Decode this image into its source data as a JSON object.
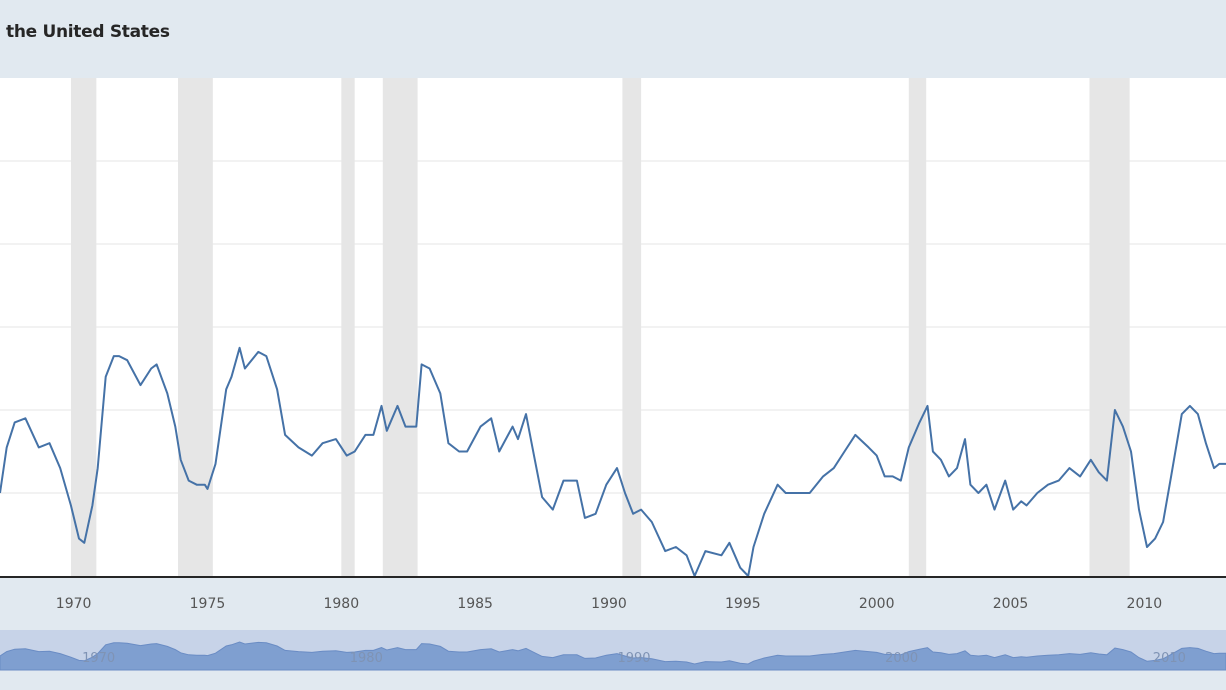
{
  "chart_data": {
    "type": "line",
    "title": "the United States",
    "xlabel": "",
    "ylabel": "",
    "xlim": [
      1967.25,
      2013.05
    ],
    "ylim": [
      0,
      6
    ],
    "grid": true,
    "recession_shading": true,
    "x_ticks": [
      "1970",
      "1975",
      "1980",
      "1985",
      "1990",
      "1995",
      "2000",
      "2005",
      "2010"
    ],
    "recessions": [
      [
        1969.9,
        1970.85
      ],
      [
        1973.9,
        1975.2
      ],
      [
        1980.0,
        1980.5
      ],
      [
        1981.55,
        1982.85
      ],
      [
        1990.5,
        1991.2
      ],
      [
        2001.2,
        2001.85
      ],
      [
        2007.95,
        2009.45
      ]
    ],
    "series": [
      {
        "name": "",
        "x": [
          1967.25,
          1967.5,
          1967.8,
          1968.2,
          1968.7,
          1969.1,
          1969.5,
          1969.9,
          1970.2,
          1970.4,
          1970.7,
          1970.9,
          1971.2,
          1971.5,
          1971.7,
          1972.0,
          1972.5,
          1972.9,
          1973.1,
          1973.5,
          1973.8,
          1974.0,
          1974.3,
          1974.6,
          1974.9,
          1975.0,
          1975.3,
          1975.7,
          1975.9,
          1976.2,
          1976.4,
          1976.9,
          1977.2,
          1977.6,
          1977.9,
          1978.4,
          1978.9,
          1979.3,
          1979.8,
          1980.2,
          1980.5,
          1980.9,
          1981.2,
          1981.5,
          1981.7,
          1982.1,
          1982.4,
          1982.8,
          1983.0,
          1983.3,
          1983.7,
          1984.0,
          1984.4,
          1984.7,
          1985.2,
          1985.6,
          1985.9,
          1986.4,
          1986.6,
          1986.9,
          1987.2,
          1987.5,
          1987.9,
          1988.3,
          1988.8,
          1989.1,
          1989.5,
          1989.9,
          1990.3,
          1990.6,
          1990.9,
          1991.2,
          1991.6,
          1992.1,
          1992.5,
          1992.9,
          1993.2,
          1993.6,
          1994.2,
          1994.5,
          1994.9,
          1995.2,
          1995.4,
          1995.8,
          1996.3,
          1996.6,
          1997.0,
          1997.5,
          1998.0,
          1998.4,
          1998.8,
          1999.2,
          1999.7,
          2000.0,
          2000.3,
          2000.6,
          2000.9,
          2001.2,
          2001.6,
          2001.9,
          2002.1,
          2002.4,
          2002.7,
          2003.0,
          2003.3,
          2003.5,
          2003.8,
          2004.1,
          2004.4,
          2004.8,
          2005.1,
          2005.4,
          2005.6,
          2006.0,
          2006.4,
          2006.8,
          2007.2,
          2007.6,
          2008.0,
          2008.3,
          2008.6,
          2008.9,
          2009.2,
          2009.5,
          2009.8,
          2010.1,
          2010.4,
          2010.7,
          2011.0,
          2011.4,
          2011.7,
          2012.0,
          2012.3,
          2012.6,
          2012.8,
          2013.05
        ],
        "values": [
          1.0,
          1.55,
          1.85,
          1.9,
          1.55,
          1.6,
          1.3,
          0.85,
          0.45,
          0.4,
          0.85,
          1.3,
          2.4,
          2.65,
          2.65,
          2.6,
          2.3,
          2.5,
          2.55,
          2.2,
          1.8,
          1.4,
          1.15,
          1.1,
          1.1,
          1.05,
          1.35,
          2.25,
          2.4,
          2.75,
          2.5,
          2.7,
          2.65,
          2.25,
          1.7,
          1.55,
          1.45,
          1.6,
          1.65,
          1.45,
          1.5,
          1.7,
          1.7,
          2.05,
          1.75,
          2.05,
          1.8,
          1.8,
          2.55,
          2.5,
          2.2,
          1.6,
          1.5,
          1.5,
          1.8,
          1.9,
          1.5,
          1.8,
          1.65,
          1.95,
          1.45,
          0.95,
          0.8,
          1.15,
          1.15,
          0.7,
          0.75,
          1.1,
          1.3,
          1.0,
          0.75,
          0.8,
          0.65,
          0.3,
          0.35,
          0.25,
          0.0,
          0.3,
          0.25,
          0.4,
          0.1,
          0.0,
          0.35,
          0.75,
          1.1,
          1.0,
          1.0,
          1.0,
          1.2,
          1.3,
          1.5,
          1.7,
          1.55,
          1.45,
          1.2,
          1.2,
          1.15,
          1.55,
          1.85,
          2.05,
          1.5,
          1.4,
          1.2,
          1.3,
          1.65,
          1.1,
          1.0,
          1.1,
          0.8,
          1.15,
          0.8,
          0.9,
          0.85,
          1.0,
          1.1,
          1.15,
          1.3,
          1.2,
          1.4,
          1.25,
          1.15,
          2.0,
          1.8,
          1.5,
          0.8,
          0.35,
          0.45,
          0.65,
          1.2,
          1.95,
          2.05,
          1.95,
          1.6,
          1.3,
          1.35,
          1.35
        ]
      }
    ],
    "navigator": {
      "tick_labels": [
        "1970",
        "1980",
        "1990",
        "2000",
        "2010"
      ]
    }
  }
}
